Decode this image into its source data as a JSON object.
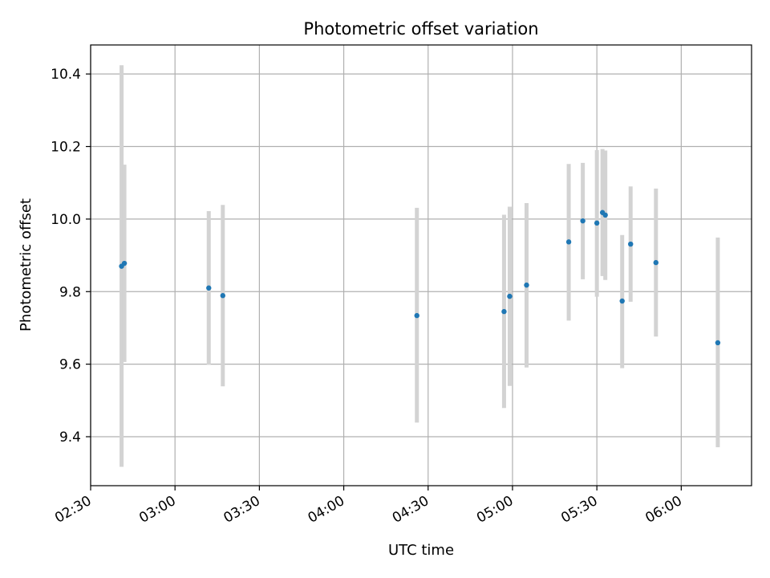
{
  "chart_data": {
    "type": "scatter",
    "title": "Photometric offset variation",
    "xlabel": "UTC time",
    "ylabel": "Photometric offset",
    "xlim": [
      "02:30",
      "06:25"
    ],
    "ylim": [
      9.265,
      10.48
    ],
    "x_ticks": [
      "02:30",
      "03:00",
      "03:30",
      "04:00",
      "04:30",
      "05:00",
      "05:30",
      "06:00"
    ],
    "y_ticks": [
      9.4,
      9.6,
      9.8,
      10.0,
      10.2,
      10.4
    ],
    "grid": true,
    "marker_color": "#1f77b4",
    "errorbar_color": "#d3d3d3",
    "points": [
      {
        "time": "02:41",
        "y": 9.87,
        "yerr_low": 9.317,
        "yerr_high": 10.424
      },
      {
        "time": "02:42",
        "y": 9.878,
        "yerr_low": 9.606,
        "yerr_high": 10.15
      },
      {
        "time": "03:12",
        "y": 9.81,
        "yerr_low": 9.598,
        "yerr_high": 10.022
      },
      {
        "time": "03:17",
        "y": 9.789,
        "yerr_low": 9.539,
        "yerr_high": 10.039
      },
      {
        "time": "04:26",
        "y": 9.734,
        "yerr_low": 9.439,
        "yerr_high": 10.031
      },
      {
        "time": "04:57",
        "y": 9.745,
        "yerr_low": 9.479,
        "yerr_high": 10.012
      },
      {
        "time": "04:59",
        "y": 9.787,
        "yerr_low": 9.54,
        "yerr_high": 10.034
      },
      {
        "time": "05:05",
        "y": 9.818,
        "yerr_low": 9.591,
        "yerr_high": 10.044
      },
      {
        "time": "05:20",
        "y": 9.937,
        "yerr_low": 9.72,
        "yerr_high": 10.152
      },
      {
        "time": "05:25",
        "y": 9.995,
        "yerr_low": 9.834,
        "yerr_high": 10.155
      },
      {
        "time": "05:30",
        "y": 9.989,
        "yerr_low": 9.786,
        "yerr_high": 10.19
      },
      {
        "time": "05:32",
        "y": 10.018,
        "yerr_low": 9.843,
        "yerr_high": 10.193
      },
      {
        "time": "05:33",
        "y": 10.011,
        "yerr_low": 9.832,
        "yerr_high": 10.189
      },
      {
        "time": "05:39",
        "y": 9.774,
        "yerr_low": 9.589,
        "yerr_high": 9.956
      },
      {
        "time": "05:42",
        "y": 9.931,
        "yerr_low": 9.772,
        "yerr_high": 10.09
      },
      {
        "time": "05:51",
        "y": 9.88,
        "yerr_low": 9.676,
        "yerr_high": 10.084
      },
      {
        "time": "06:13",
        "y": 9.659,
        "yerr_low": 9.371,
        "yerr_high": 9.949
      }
    ]
  }
}
